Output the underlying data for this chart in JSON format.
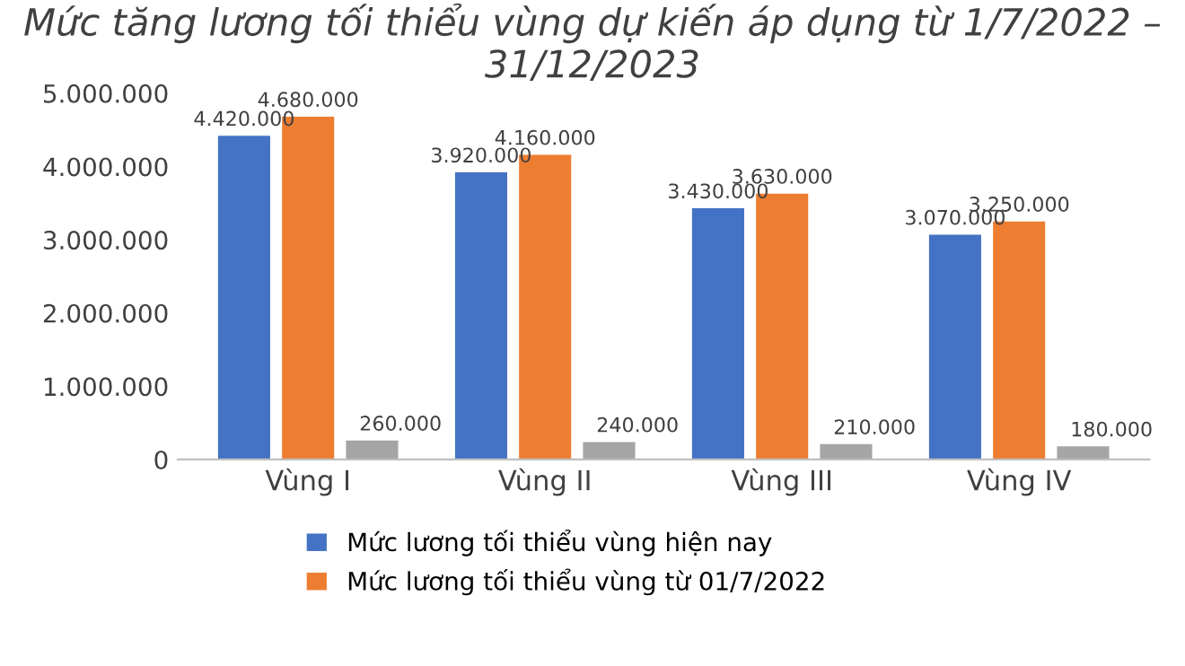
{
  "chart_data": {
    "type": "bar",
    "title": "Mức tăng lương tối thiểu vùng dự kiến áp dụng từ 1/7/2022 – 31/12/2023",
    "categories": [
      "Vùng I",
      "Vùng II",
      "Vùng III",
      "Vùng IV"
    ],
    "series": [
      {
        "name": "Mức lương tối thiểu vùng hiện nay",
        "color": "#4472c4",
        "values": [
          4420000,
          3920000,
          3430000,
          3070000
        ],
        "value_labels": [
          "4.420.000",
          "3.920.000",
          "3.430.000",
          "3.070.000"
        ]
      },
      {
        "name": "Mức lương tối thiểu vùng từ 01/7/2022",
        "color": "#ed7d31",
        "values": [
          4680000,
          4160000,
          3630000,
          3250000
        ],
        "value_labels": [
          "4.680.000",
          "4.160.000",
          "3.630.000",
          "3.250.000"
        ]
      },
      {
        "color": "#a5a5a5",
        "values": [
          260000,
          240000,
          210000,
          180000
        ],
        "value_labels": [
          "260.000",
          "240.000",
          "210.000",
          "180.000"
        ]
      }
    ],
    "ylim": [
      0,
      5000000
    ],
    "yticks": [
      {
        "value": 0,
        "label": "0"
      },
      {
        "value": 1000000,
        "label": "1.000.000"
      },
      {
        "value": 2000000,
        "label": "2.000.000"
      },
      {
        "value": 3000000,
        "label": "3.000.000"
      },
      {
        "value": 4000000,
        "label": "4.000.000"
      },
      {
        "value": 5000000,
        "label": "5.000.000"
      }
    ],
    "grid": false,
    "legend": "bottom"
  }
}
